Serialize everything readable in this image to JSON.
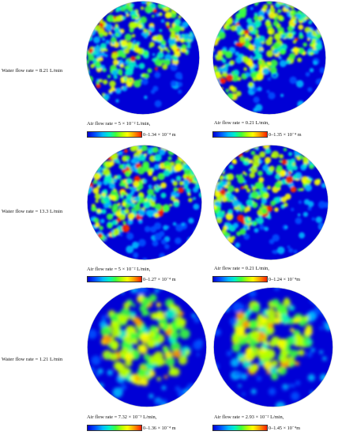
{
  "rows": [
    {
      "water_label": "Water flow rate = 8.21 L/min",
      "panels": [
        {
          "air_label": "Air flow rate = 5 × 10⁻² L/min,",
          "scale_label": "0–1.34 × 10⁻⁴ m"
        },
        {
          "air_label": "Air flow rate = 0.21 L/min,",
          "scale_label": "0–1.35 × 10⁻⁴ m"
        }
      ]
    },
    {
      "water_label": "Water flow rate = 13.3 L/min",
      "panels": [
        {
          "air_label": "Air flow rate = 5 × 10⁻² L/min,",
          "scale_label": "0–1.27 × 10⁻⁴ m"
        },
        {
          "air_label": "Air flow rate = 0.21 L/min,",
          "scale_label": "0–1.24 × 10⁻⁴m"
        }
      ]
    },
    {
      "water_label": "Water flow rate = 1.21 L/min",
      "panels": [
        {
          "air_label": "Air flow rate = 7.32 × 10⁻³ L/min,",
          "scale_label": "0–1.36 × 10⁻⁴ m"
        },
        {
          "air_label": "Air flow rate = 2.93 × 10⁻² L/min,",
          "scale_label": "0–1.45 × 10⁻⁴m"
        }
      ]
    }
  ],
  "colormap": [
    "#0000d6",
    "#0050ff",
    "#00b8ff",
    "#00f0c8",
    "#3cff3c",
    "#b8ff00",
    "#ffff00",
    "#ffa000",
    "#ff1e00"
  ]
}
